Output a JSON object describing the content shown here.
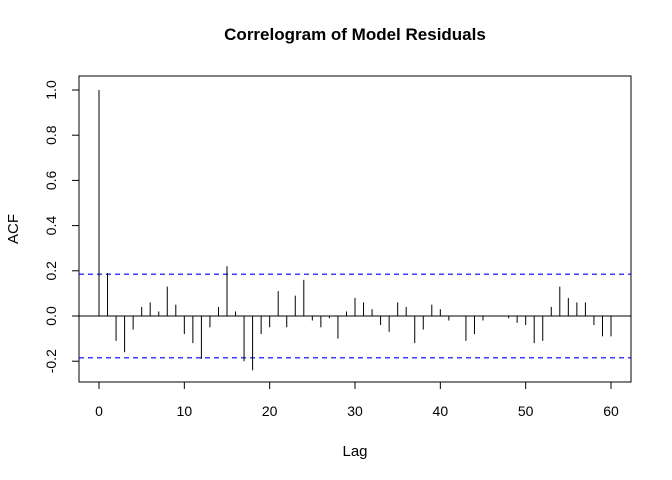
{
  "chart_data": {
    "type": "bar",
    "title": "Correlogram of Model Residuals",
    "xlabel": "Lag",
    "ylabel": "ACF",
    "xlim": [
      0,
      60
    ],
    "ylim": [
      -0.25,
      1.0
    ],
    "x_ticks": [
      0,
      10,
      20,
      30,
      40,
      50,
      60
    ],
    "y_ticks": [
      -0.2,
      0.0,
      0.2,
      0.4,
      0.6,
      0.8,
      1.0
    ],
    "x_tick_labels": [
      "0",
      "10",
      "20",
      "30",
      "40",
      "50",
      "60"
    ],
    "y_tick_labels": [
      "-0.2",
      "0.0",
      "0.2",
      "0.4",
      "0.6",
      "0.8",
      "1.0"
    ],
    "confidence_bound": 0.185,
    "colors": {
      "bars": "#000000",
      "bounds": "#0000ff",
      "zero": "#000000"
    },
    "grid": false,
    "lags": [
      0,
      1,
      2,
      3,
      4,
      5,
      6,
      7,
      8,
      9,
      10,
      11,
      12,
      13,
      14,
      15,
      16,
      17,
      18,
      19,
      20,
      21,
      22,
      23,
      24,
      25,
      26,
      27,
      28,
      29,
      30,
      31,
      32,
      33,
      34,
      35,
      36,
      37,
      38,
      39,
      40,
      41,
      42,
      43,
      44,
      45,
      46,
      47,
      48,
      49,
      50,
      51,
      52,
      53,
      54,
      55,
      56,
      57,
      58,
      59,
      60
    ],
    "acf": [
      1.0,
      0.19,
      -0.11,
      -0.16,
      -0.06,
      0.04,
      0.06,
      0.02,
      0.13,
      0.05,
      -0.08,
      -0.12,
      -0.19,
      -0.05,
      0.04,
      0.22,
      0.02,
      -0.2,
      -0.24,
      -0.08,
      -0.05,
      0.11,
      -0.05,
      0.09,
      0.16,
      -0.02,
      -0.05,
      -0.01,
      -0.1,
      0.02,
      0.08,
      0.06,
      0.03,
      -0.04,
      -0.07,
      0.06,
      0.04,
      -0.12,
      -0.06,
      0.05,
      0.03,
      -0.02,
      0.0,
      -0.11,
      -0.08,
      -0.02,
      0.0,
      0.0,
      -0.01,
      -0.03,
      -0.04,
      -0.12,
      -0.11,
      0.04,
      0.13,
      0.08,
      0.06,
      0.06,
      -0.04,
      -0.09,
      -0.09
    ]
  }
}
